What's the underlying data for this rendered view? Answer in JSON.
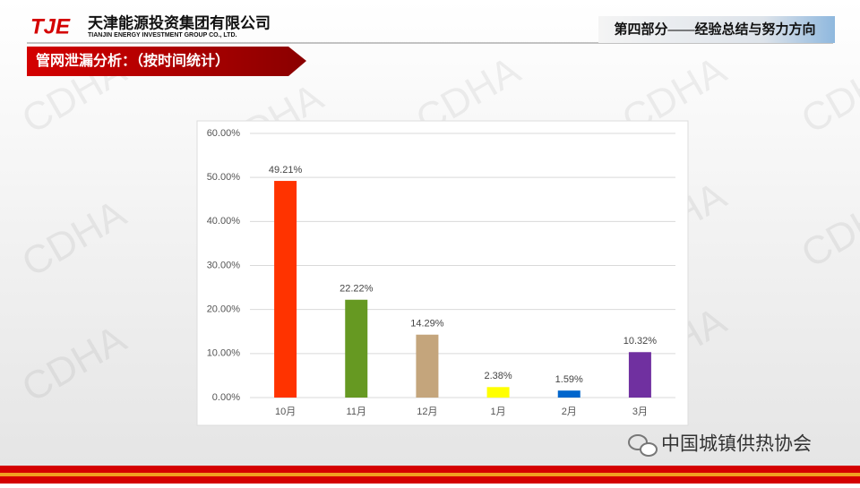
{
  "header": {
    "logo": "TJE",
    "company_cn": "天津能源投资集团有限公司",
    "company_en": "TIANJIN ENERGY INVESTMENT GROUP CO., LTD.",
    "section": "第四部分——经验总结与努力方向"
  },
  "banner": "管网泄漏分析：（按时间统计）",
  "watermark": "CDHA",
  "footer": "中国城镇供热协会",
  "chart_data": {
    "type": "bar",
    "categories": [
      "10月",
      "11月",
      "12月",
      "1月",
      "2月",
      "3月"
    ],
    "values": [
      49.21,
      22.22,
      14.29,
      2.38,
      1.59,
      10.32
    ],
    "value_labels": [
      "49.21%",
      "22.22%",
      "14.29%",
      "2.38%",
      "1.59%",
      "10.32%"
    ],
    "colors": [
      "#ff3300",
      "#669922",
      "#c4a57c",
      "#ffff00",
      "#0066cc",
      "#7030a0"
    ],
    "ylim": [
      0,
      60
    ],
    "yticks": [
      {
        "value": 0,
        "label": "0.00%"
      },
      {
        "value": 10,
        "label": "10.00%"
      },
      {
        "value": 20,
        "label": "20.00%"
      },
      {
        "value": 30,
        "label": "30.00%"
      },
      {
        "value": 40,
        "label": "40.00%"
      },
      {
        "value": 50,
        "label": "50.00%"
      },
      {
        "value": 60,
        "label": "60.00%"
      }
    ],
    "grid": true
  }
}
